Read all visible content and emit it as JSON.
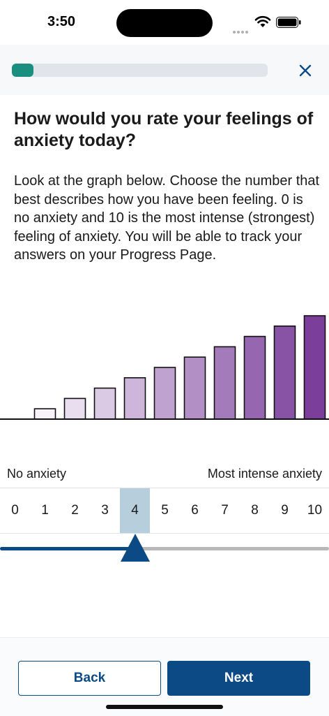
{
  "status_bar": {
    "time": "3:50",
    "icons": [
      "signal-icon",
      "wifi-icon",
      "battery-icon"
    ]
  },
  "progress": {
    "fraction": 0.085,
    "fill_color": "#1b8f7f",
    "track_color": "#e1e4eb"
  },
  "close_icon": "close-icon",
  "question": "How would you rate your feelings of anxiety today?",
  "instructions": "Look at the graph below. Choose the number that best describes how you have been feeling. 0 is no anxiety and 10 is the most intense (strongest) feeling of anxiety. You will be able to track your answers on your Progress Page.",
  "graph": {
    "levels": [
      0,
      1,
      2,
      3,
      4,
      5,
      6,
      7,
      8,
      9,
      10
    ],
    "color_start": "#f6f2f9",
    "color_end": "#7b3f9b"
  },
  "scale": {
    "low_label": "No anxiety",
    "high_label": "Most intense anxiety",
    "options": [
      "0",
      "1",
      "2",
      "3",
      "4",
      "5",
      "6",
      "7",
      "8",
      "9",
      "10"
    ],
    "selected": 4,
    "highlight_color": "#b7cfdd"
  },
  "slider": {
    "value": 4,
    "min": 0,
    "max": 10,
    "color": "#0c4a86"
  },
  "buttons": {
    "back": "Back",
    "next": "Next"
  }
}
